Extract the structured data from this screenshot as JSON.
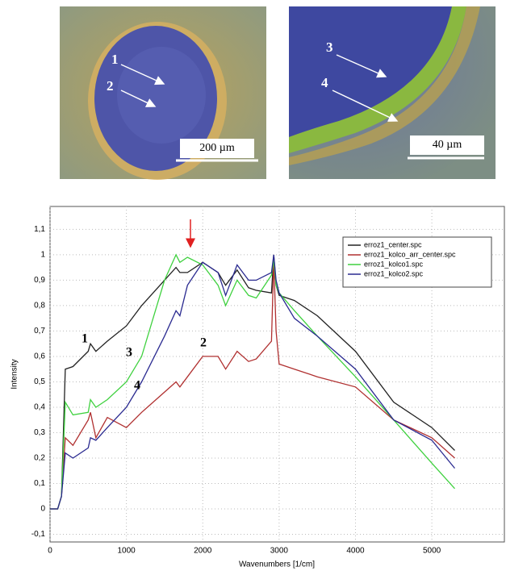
{
  "chart_data": {
    "type": "line",
    "x_label": "Wavenumbers [1/cm]",
    "y_label": "Intensity",
    "x": [
      0,
      100,
      150,
      200,
      300,
      500,
      530,
      600,
      750,
      1000,
      1200,
      1500,
      1650,
      1700,
      1800,
      2000,
      2200,
      2300,
      2450,
      2600,
      2700,
      2900,
      2930,
      2960,
      3000,
      3200,
      3500,
      4000,
      4500,
      5000,
      5300
    ],
    "series": [
      {
        "name": "erroz1_center.spc",
        "color": "#222222",
        "values": [
          0,
          0,
          0.05,
          0.55,
          0.56,
          0.62,
          0.65,
          0.62,
          0.66,
          0.72,
          0.8,
          0.9,
          0.95,
          0.93,
          0.93,
          0.97,
          0.93,
          0.88,
          0.94,
          0.87,
          0.86,
          0.85,
          1.0,
          0.88,
          0.84,
          0.82,
          0.76,
          0.62,
          0.42,
          0.32,
          0.23
        ]
      },
      {
        "name": "erroz1_kolco_arr_center.spc",
        "color": "#b03030",
        "values": [
          0,
          0,
          0.05,
          0.28,
          0.25,
          0.35,
          0.38,
          0.28,
          0.36,
          0.32,
          0.38,
          0.46,
          0.5,
          0.48,
          0.52,
          0.6,
          0.6,
          0.55,
          0.62,
          0.58,
          0.59,
          0.66,
          0.98,
          0.7,
          0.57,
          0.55,
          0.52,
          0.48,
          0.35,
          0.28,
          0.2
        ]
      },
      {
        "name": "erroz1_kolco1.spc",
        "color": "#3fd13f",
        "values": [
          0,
          0,
          0.05,
          0.42,
          0.37,
          0.38,
          0.43,
          0.4,
          0.43,
          0.5,
          0.6,
          0.9,
          1.0,
          0.97,
          0.99,
          0.96,
          0.88,
          0.8,
          0.9,
          0.84,
          0.83,
          0.92,
          0.98,
          0.88,
          0.85,
          0.78,
          0.68,
          0.52,
          0.35,
          0.18,
          0.08
        ]
      },
      {
        "name": "erroz1_kolco2.spc",
        "color": "#2a2a90",
        "values": [
          0,
          0,
          0.05,
          0.22,
          0.2,
          0.24,
          0.28,
          0.27,
          0.32,
          0.4,
          0.5,
          0.68,
          0.78,
          0.76,
          0.88,
          0.97,
          0.93,
          0.84,
          0.96,
          0.9,
          0.9,
          0.93,
          1.0,
          0.9,
          0.85,
          0.75,
          0.68,
          0.55,
          0.35,
          0.27,
          0.16
        ]
      }
    ],
    "xlim": [
      0,
      5950
    ],
    "xticks": [
      0,
      1000,
      2000,
      3000,
      4000,
      5000
    ],
    "ylim": [
      -0.13,
      1.19
    ],
    "yticks": [
      {
        "value": -0.1,
        "label": "-0,1"
      },
      0,
      {
        "value": 0.1,
        "label": "0,1"
      },
      {
        "value": 0.2,
        "label": "0,2"
      },
      {
        "value": 0.3,
        "label": "0,3"
      },
      {
        "value": 0.4,
        "label": "0,4"
      },
      {
        "value": 0.5,
        "label": "0,5"
      },
      {
        "value": 0.6,
        "label": "0,6"
      },
      {
        "value": 0.7,
        "label": "0,7"
      },
      {
        "value": 0.8,
        "label": "0,8"
      },
      {
        "value": 0.9,
        "label": "0,9"
      },
      1,
      {
        "value": 1.1,
        "label": "1,1"
      }
    ],
    "grid": true,
    "legend": "upper-right",
    "annotations": [
      "1",
      "2",
      "3",
      "4"
    ]
  },
  "micrographs": [
    {
      "labels": [
        "1",
        "2"
      ],
      "scale_bar": "200 µm"
    },
    {
      "labels": [
        "3",
        "4"
      ],
      "scale_bar": "40 µm"
    }
  ]
}
